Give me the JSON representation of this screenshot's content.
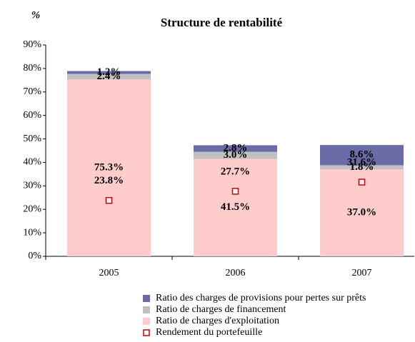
{
  "chart_data": {
    "type": "bar",
    "stacked": true,
    "title": "Structure de rentabilité",
    "y_label": "%",
    "categories": [
      "2005",
      "2006",
      "2007"
    ],
    "series": [
      {
        "name": "Ratio des charges de provisions pour pertes sur prêts",
        "color": "#6b6ba8",
        "values": [
          1.2,
          2.8,
          8.6
        ],
        "value_labels": [
          "1.2%",
          "2.8%",
          "8.6%"
        ],
        "label_color": "#ffffff"
      },
      {
        "name": "Ratio de charges de financement",
        "color": "#c0c0c0",
        "values": [
          2.4,
          3.0,
          1.8
        ],
        "value_labels": [
          "2.4%",
          "3.0%",
          "1.8%"
        ],
        "label_color": "#000000"
      },
      {
        "name": "Ratio de charges d'exploitation",
        "color": "#ffcccc",
        "values": [
          75.3,
          41.5,
          37.0
        ],
        "value_labels": [
          "75.3%",
          "41.5%",
          "37.0%"
        ],
        "label_color": "#000000"
      },
      {
        "name": "Rendement du portefeuille",
        "kind": "scatter",
        "color": "#cc0000",
        "values": [
          23.8,
          27.7,
          31.6
        ],
        "value_labels": [
          "23.8%",
          "27.7%",
          "31.6%"
        ],
        "label_color": "#b00020"
      }
    ],
    "ylim": [
      0,
      90
    ],
    "yticks": [
      {
        "value": 0,
        "label": "0%"
      },
      {
        "value": 10,
        "label": "10%"
      },
      {
        "value": 20,
        "label": "20%"
      },
      {
        "value": 30,
        "label": "30%"
      },
      {
        "value": 40,
        "label": "40%"
      },
      {
        "value": 50,
        "label": "50%"
      },
      {
        "value": 60,
        "label": "60%"
      },
      {
        "value": 70,
        "label": "70%"
      },
      {
        "value": 80,
        "label": "80%"
      },
      {
        "value": 90,
        "label": "90%"
      }
    ],
    "grid": false,
    "legend": "bottom"
  }
}
